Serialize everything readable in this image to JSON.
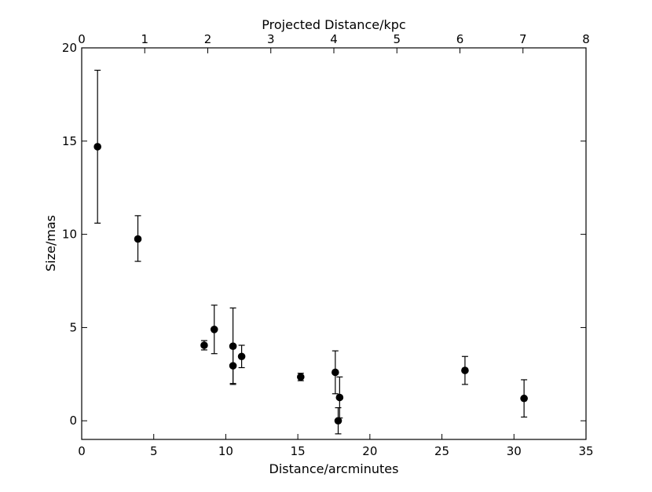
{
  "chart_data": {
    "type": "scatter",
    "x_label": "Distance/arcminutes",
    "y_label": "Size/mas",
    "top_x_label": "Projected Distance/kpc",
    "xlim": [
      0,
      35
    ],
    "ylim": [
      -1,
      20
    ],
    "top_xlim": [
      0,
      8
    ],
    "x_ticks": [
      0,
      5,
      10,
      15,
      20,
      25,
      30,
      35
    ],
    "y_ticks": [
      0,
      5,
      10,
      15,
      20
    ],
    "top_x_ticks": [
      0,
      1,
      2,
      3,
      4,
      5,
      6,
      7,
      8
    ],
    "points": [
      {
        "x": 1.1,
        "y": 14.7,
        "err_low": 4.1,
        "err_high": 4.1
      },
      {
        "x": 3.9,
        "y": 9.75,
        "err_low": 1.2,
        "err_high": 1.25
      },
      {
        "x": 8.5,
        "y": 4.05,
        "err_low": 0.25,
        "err_high": 0.25
      },
      {
        "x": 9.2,
        "y": 4.9,
        "err_low": 1.3,
        "err_high": 1.3
      },
      {
        "x": 10.5,
        "y": 4.0,
        "err_low": 2.05,
        "err_high": 2.05
      },
      {
        "x": 10.5,
        "y": 2.95,
        "err_low": 0.95,
        "err_high": 0.95
      },
      {
        "x": 11.1,
        "y": 3.45,
        "err_low": 0.6,
        "err_high": 0.6
      },
      {
        "x": 15.2,
        "y": 2.35,
        "err_low": 0.2,
        "err_high": 0.2
      },
      {
        "x": 17.6,
        "y": 2.6,
        "err_low": 1.15,
        "err_high": 1.15
      },
      {
        "x": 17.9,
        "y": 1.25,
        "err_low": 1.1,
        "err_high": 1.1
      },
      {
        "x": 17.8,
        "y": 0.0,
        "err_low": 0.7,
        "err_high": 0.7
      },
      {
        "x": 26.6,
        "y": 2.7,
        "err_low": 0.75,
        "err_high": 0.75
      },
      {
        "x": 30.7,
        "y": 1.2,
        "err_low": 1.0,
        "err_high": 1.0
      }
    ],
    "marker_color": "#000000",
    "grid": false
  }
}
